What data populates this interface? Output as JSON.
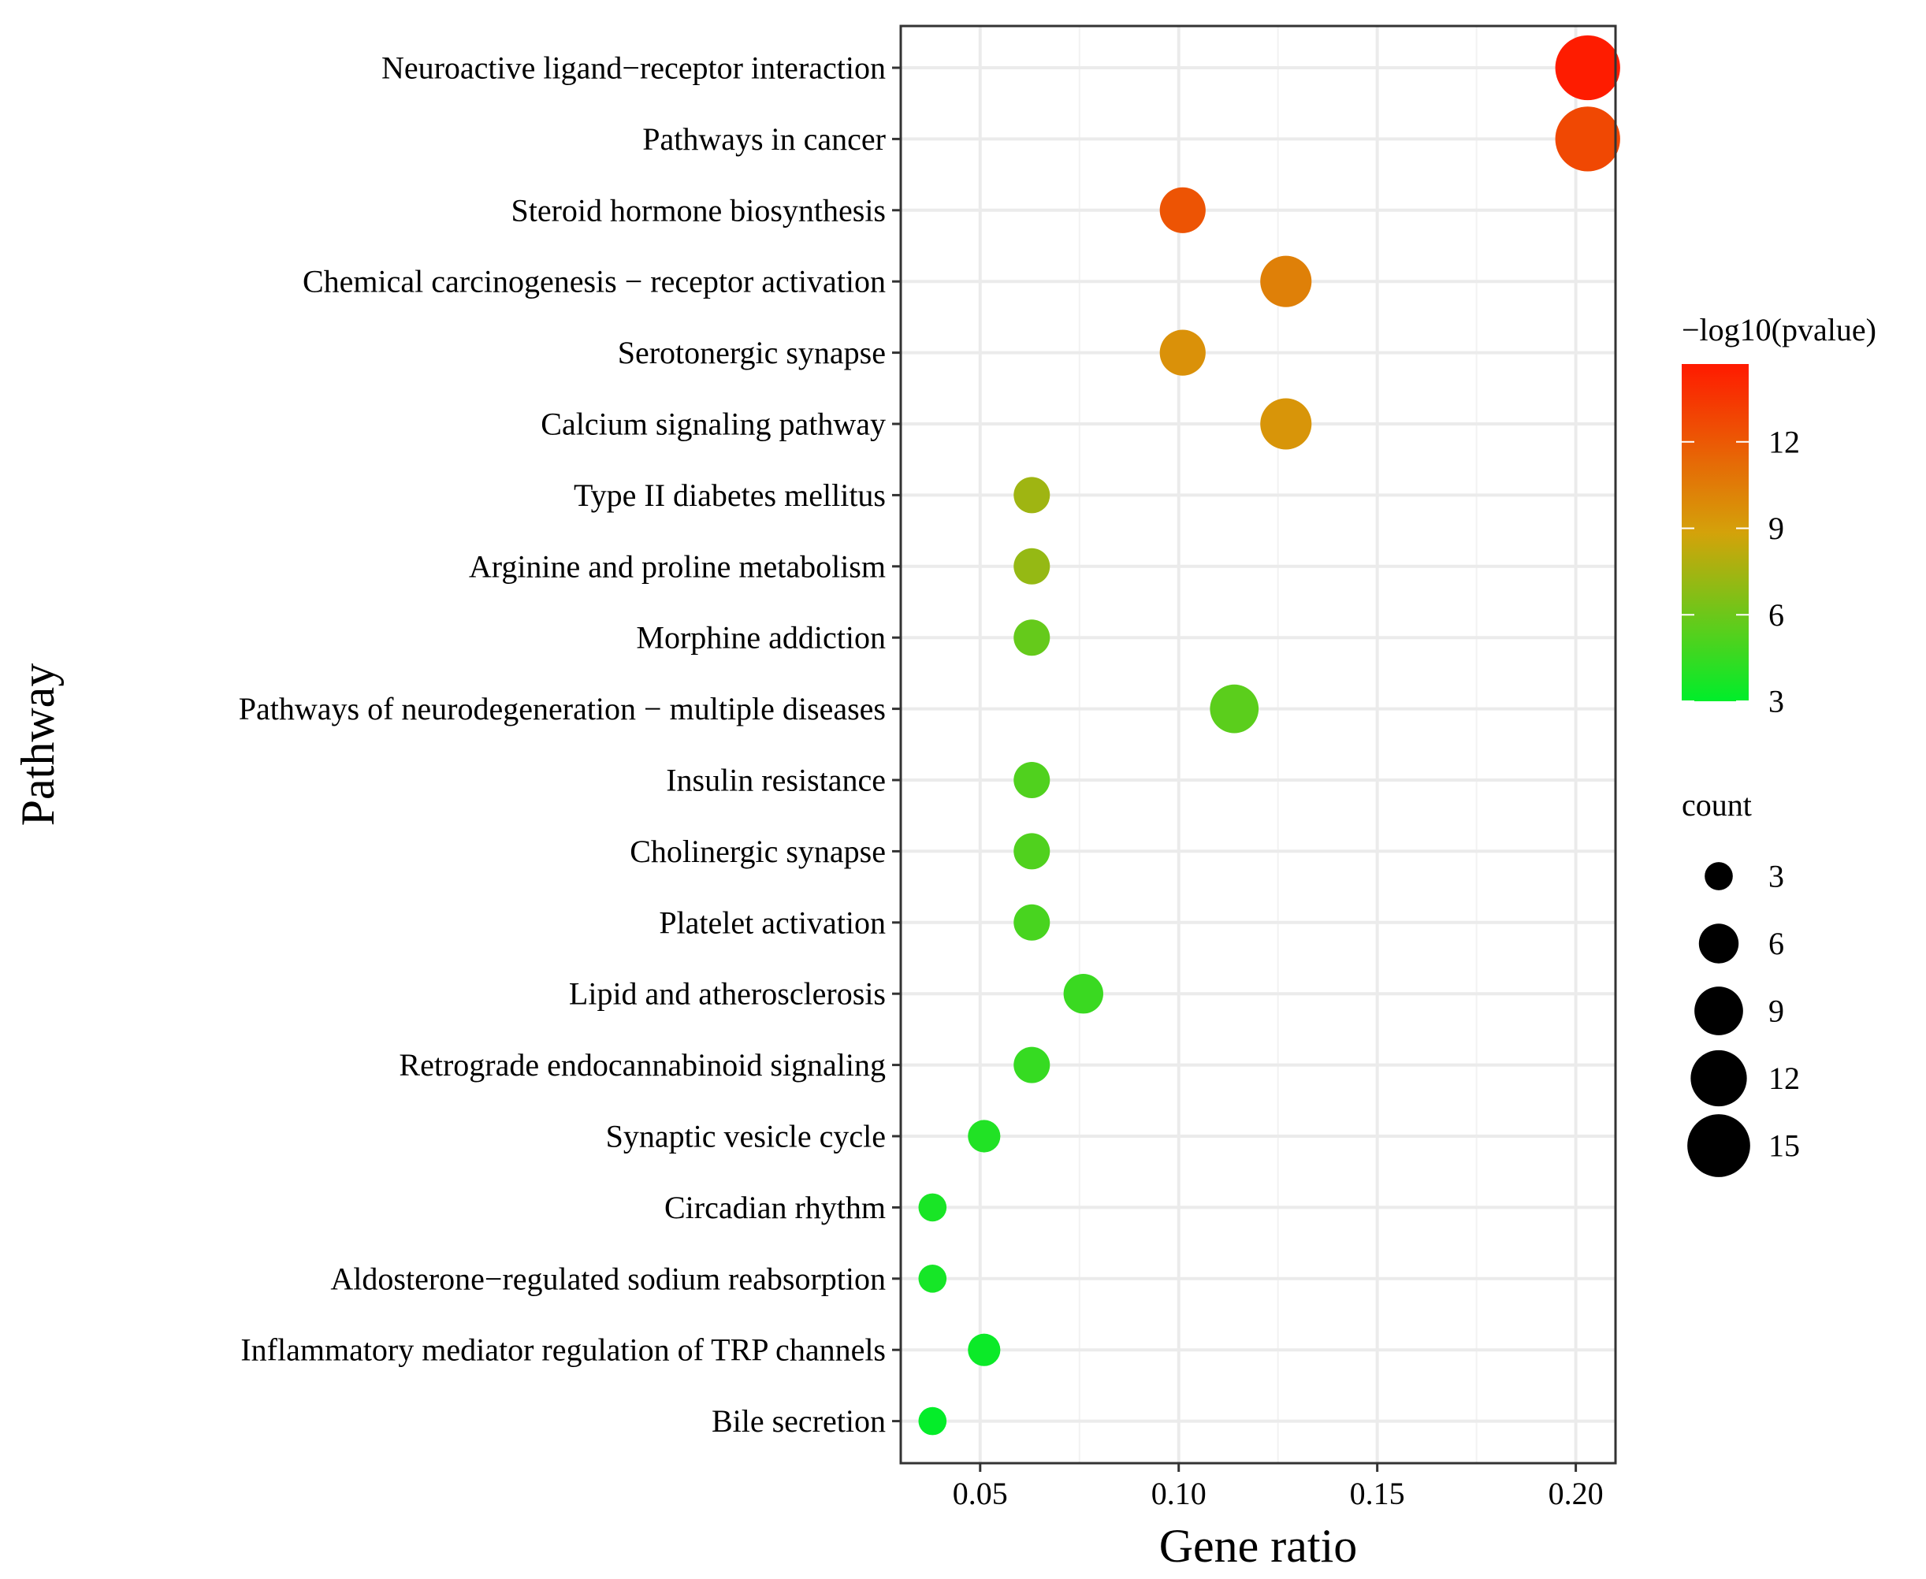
{
  "chart_data": {
    "type": "scatter",
    "subtype": "dot-plot",
    "title": "",
    "xlabel": "Gene ratio",
    "ylabel": "Pathway",
    "xlim": [
      0.03,
      0.21
    ],
    "x_ticks": [
      0.05,
      0.1,
      0.15,
      0.2
    ],
    "x_tick_labels": [
      "0.05",
      "0.10",
      "0.15",
      "0.20"
    ],
    "grid": true,
    "categories": [
      "Neuroactive ligand−receptor interaction",
      "Pathways in cancer",
      "Steroid hormone biosynthesis",
      "Chemical carcinogenesis − receptor activation",
      "Serotonergic synapse",
      "Calcium signaling pathway",
      "Type II diabetes mellitus",
      "Arginine and proline metabolism",
      "Morphine addiction",
      "Pathways of neurodegeneration − multiple diseases",
      "Insulin resistance",
      "Cholinergic synapse",
      "Platelet activation",
      "Lipid and atherosclerosis",
      "Retrograde endocannabinoid signaling",
      "Synaptic vesicle cycle",
      "Circadian rhythm",
      "Aldosterone−regulated sodium reabsorption",
      "Inflammatory mediator regulation of TRP channels",
      "Bile secretion"
    ],
    "points": [
      {
        "pathway": "Neuroactive ligand−receptor interaction",
        "gene_ratio": 0.203,
        "count": 16,
        "neg_log10_pvalue": 14.6
      },
      {
        "pathway": "Pathways in cancer",
        "gene_ratio": 0.203,
        "count": 16,
        "neg_log10_pvalue": 12.7
      },
      {
        "pathway": "Steroid hormone biosynthesis",
        "gene_ratio": 0.101,
        "count": 8,
        "neg_log10_pvalue": 12.2
      },
      {
        "pathway": "Chemical carcinogenesis − receptor activation",
        "gene_ratio": 0.127,
        "count": 10,
        "neg_log10_pvalue": 10.3
      },
      {
        "pathway": "Serotonergic synapse",
        "gene_ratio": 0.101,
        "count": 8,
        "neg_log10_pvalue": 9.6
      },
      {
        "pathway": "Calcium signaling pathway",
        "gene_ratio": 0.127,
        "count": 10,
        "neg_log10_pvalue": 9.4
      },
      {
        "pathway": "Type II diabetes mellitus",
        "gene_ratio": 0.063,
        "count": 5,
        "neg_log10_pvalue": 7.4
      },
      {
        "pathway": "Arginine and proline metabolism",
        "gene_ratio": 0.063,
        "count": 5,
        "neg_log10_pvalue": 7.1
      },
      {
        "pathway": "Morphine addiction",
        "gene_ratio": 0.063,
        "count": 5,
        "neg_log10_pvalue": 5.8
      },
      {
        "pathway": "Pathways of neurodegeneration − multiple diseases",
        "gene_ratio": 0.114,
        "count": 9,
        "neg_log10_pvalue": 5.5
      },
      {
        "pathway": "Insulin resistance",
        "gene_ratio": 0.063,
        "count": 5,
        "neg_log10_pvalue": 5.2
      },
      {
        "pathway": "Cholinergic synapse",
        "gene_ratio": 0.063,
        "count": 5,
        "neg_log10_pvalue": 5.2
      },
      {
        "pathway": "Platelet activation",
        "gene_ratio": 0.063,
        "count": 5,
        "neg_log10_pvalue": 5.0
      },
      {
        "pathway": "Lipid and atherosclerosis",
        "gene_ratio": 0.076,
        "count": 6,
        "neg_log10_pvalue": 4.6
      },
      {
        "pathway": "Retrograde endocannabinoid signaling",
        "gene_ratio": 0.063,
        "count": 5,
        "neg_log10_pvalue": 4.5
      },
      {
        "pathway": "Synaptic vesicle cycle",
        "gene_ratio": 0.051,
        "count": 4,
        "neg_log10_pvalue": 3.9
      },
      {
        "pathway": "Circadian rhythm",
        "gene_ratio": 0.038,
        "count": 3,
        "neg_log10_pvalue": 3.7
      },
      {
        "pathway": "Aldosterone−regulated sodium reabsorption",
        "gene_ratio": 0.038,
        "count": 3,
        "neg_log10_pvalue": 3.6
      },
      {
        "pathway": "Inflammatory mediator regulation of TRP channels",
        "gene_ratio": 0.051,
        "count": 4,
        "neg_log10_pvalue": 3.3
      },
      {
        "pathway": "Bile secretion",
        "gene_ratio": 0.038,
        "count": 3,
        "neg_log10_pvalue": 3.1
      }
    ],
    "color_legend": {
      "title": "−log10(pvalue)",
      "range": [
        3,
        14.7
      ],
      "breaks": [
        3,
        6,
        9,
        12
      ],
      "break_labels": [
        "3",
        "6",
        "9",
        "12"
      ],
      "low_color": "#00ee2a",
      "mid_color": "#d4a20a",
      "high_color": "#ff1a00",
      "placement": "right"
    },
    "size_legend": {
      "title": "count",
      "breaks": [
        3,
        6,
        9,
        12,
        15
      ],
      "break_labels": [
        "3",
        "6",
        "9",
        "12",
        "15"
      ],
      "placement": "right"
    }
  }
}
